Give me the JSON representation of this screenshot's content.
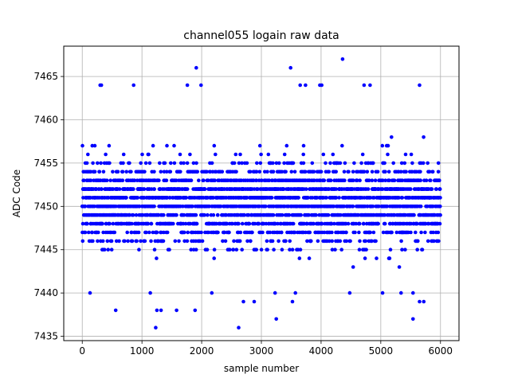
{
  "chart_data": {
    "type": "scatter",
    "title": "channel055 logain raw data",
    "xlabel": "sample number",
    "ylabel": "ADC Code",
    "xlim": [
      -310,
      6310
    ],
    "ylim": [
      7434.5,
      7468.5
    ],
    "xticks": [
      0,
      1000,
      2000,
      3000,
      4000,
      5000,
      6000
    ],
    "yticks": [
      7435,
      7440,
      7445,
      7450,
      7455,
      7460,
      7465
    ],
    "grid": true,
    "marker_color": "#0000ff",
    "n_samples": 6000,
    "value_range": [
      7436,
      7467
    ],
    "distribution_note": "dense band 7442-7459 across all samples",
    "outliers": [
      {
        "x": 1230,
        "y": 7436
      },
      {
        "x": 2620,
        "y": 7436
      },
      {
        "x": 5540,
        "y": 7437
      },
      {
        "x": 3250,
        "y": 7437
      },
      {
        "x": 560,
        "y": 7438
      },
      {
        "x": 1250,
        "y": 7438
      },
      {
        "x": 1320,
        "y": 7438
      },
      {
        "x": 1580,
        "y": 7438
      },
      {
        "x": 1890,
        "y": 7438
      },
      {
        "x": 3520,
        "y": 7439
      },
      {
        "x": 2700,
        "y": 7439
      },
      {
        "x": 2880,
        "y": 7439
      },
      {
        "x": 5650,
        "y": 7439
      },
      {
        "x": 5720,
        "y": 7439
      },
      {
        "x": 130,
        "y": 7440
      },
      {
        "x": 1140,
        "y": 7440
      },
      {
        "x": 2170,
        "y": 7440
      },
      {
        "x": 3230,
        "y": 7440
      },
      {
        "x": 3570,
        "y": 7440
      },
      {
        "x": 4480,
        "y": 7440
      },
      {
        "x": 5030,
        "y": 7440
      },
      {
        "x": 5340,
        "y": 7440
      },
      {
        "x": 5540,
        "y": 7440
      },
      {
        "x": 1910,
        "y": 7466
      },
      {
        "x": 3490,
        "y": 7466
      },
      {
        "x": 4360,
        "y": 7467
      },
      {
        "x": 300,
        "y": 7464
      },
      {
        "x": 320,
        "y": 7464
      },
      {
        "x": 860,
        "y": 7464
      },
      {
        "x": 1760,
        "y": 7464
      },
      {
        "x": 1990,
        "y": 7464
      },
      {
        "x": 3650,
        "y": 7464
      },
      {
        "x": 3740,
        "y": 7464
      },
      {
        "x": 3980,
        "y": 7464
      },
      {
        "x": 4010,
        "y": 7464
      },
      {
        "x": 4720,
        "y": 7464
      },
      {
        "x": 4820,
        "y": 7464
      },
      {
        "x": 5650,
        "y": 7464
      }
    ]
  }
}
